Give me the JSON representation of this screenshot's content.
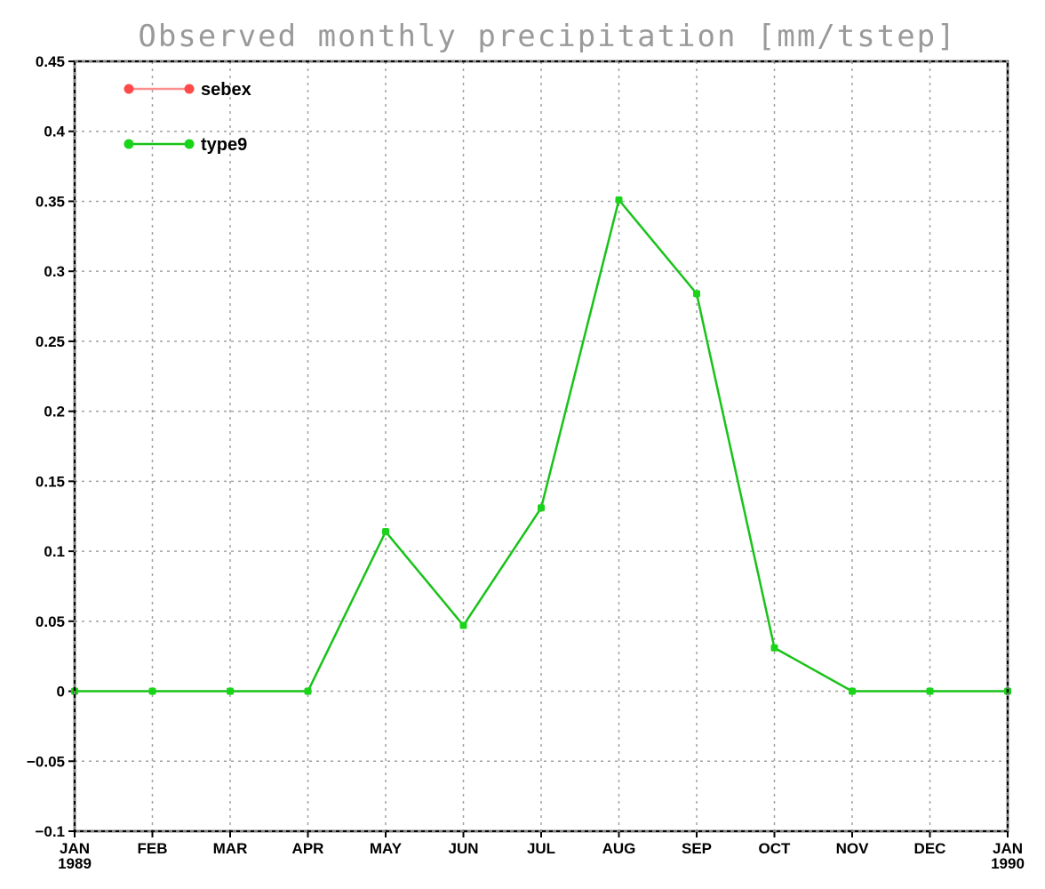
{
  "chart_data": {
    "type": "line",
    "title": "Observed monthly precipitation [mm/tstep]",
    "xlabel": "",
    "ylabel": "",
    "x_tick_labels": [
      {
        "month": "JAN",
        "year": "1989"
      },
      {
        "month": "FEB",
        "year": ""
      },
      {
        "month": "MAR",
        "year": ""
      },
      {
        "month": "APR",
        "year": ""
      },
      {
        "month": "MAY",
        "year": ""
      },
      {
        "month": "JUN",
        "year": ""
      },
      {
        "month": "JUL",
        "year": ""
      },
      {
        "month": "AUG",
        "year": ""
      },
      {
        "month": "SEP",
        "year": ""
      },
      {
        "month": "OCT",
        "year": ""
      },
      {
        "month": "NOV",
        "year": ""
      },
      {
        "month": "DEC",
        "year": ""
      },
      {
        "month": "JAN",
        "year": "1990"
      }
    ],
    "ylim": [
      -0.1,
      0.45
    ],
    "y_ticks": [
      -0.1,
      -0.05,
      0,
      0.05,
      0.1,
      0.15,
      0.2,
      0.25,
      0.3,
      0.35,
      0.4,
      0.45
    ],
    "y_tick_labels": [
      "−0.1",
      "−0.05",
      "0",
      "0.05",
      "0.1",
      "0.15",
      "0.2",
      "0.25",
      "0.3",
      "0.35",
      "0.4",
      "0.45"
    ],
    "grid": true,
    "legend": {
      "placement": "top-left"
    },
    "series": [
      {
        "name": "sebex",
        "color": "#ff4a4a",
        "line_color": "#ff8f8f",
        "values": []
      },
      {
        "name": "type9",
        "color": "#19d419",
        "line_color": "#19c219",
        "values": [
          0,
          0,
          0,
          0,
          0.114,
          0.047,
          0.131,
          0.351,
          0.284,
          0.031,
          0,
          0,
          0
        ]
      }
    ]
  }
}
